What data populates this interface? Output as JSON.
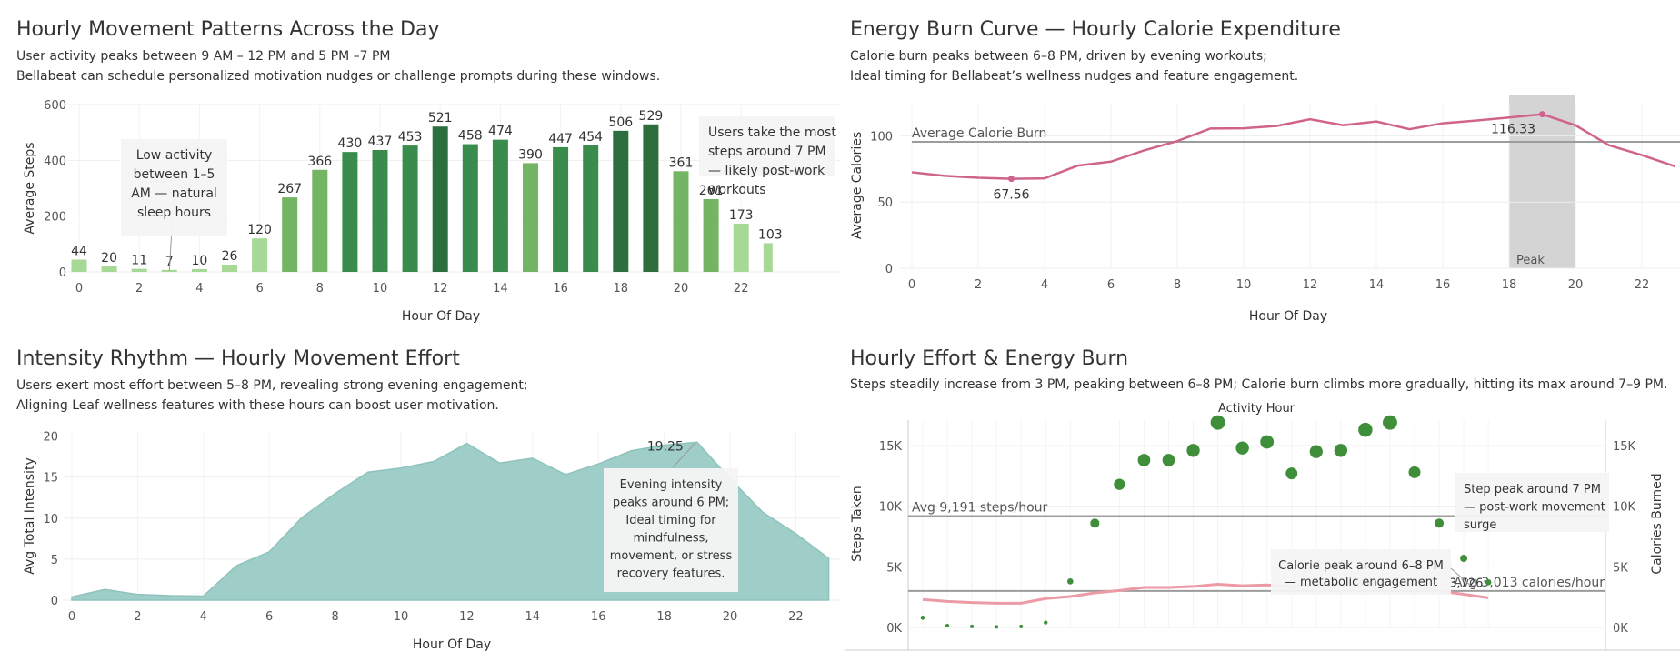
{
  "panels": {
    "steps": {
      "title": "Hourly Movement Patterns Across the Day",
      "subtitle_1": "User activity peaks between 9 AM – 12 PM and 5 PM –7 PM",
      "subtitle_2": "Bellabeat can schedule personalized motivation nudges or challenge prompts during these windows."
    },
    "calories": {
      "title": "Energy Burn Curve — Hourly Calorie Expenditure",
      "subtitle_1": "Calorie burn peaks between 6–8 PM, driven by evening workouts;",
      "subtitle_2": "Ideal timing for Bellabeat’s wellness nudges and feature engagement."
    },
    "intensity": {
      "title": "Intensity Rhythm — Hourly Movement Effort",
      "subtitle_1": "Users exert most effort between 5–8 PM, revealing strong evening engagement;",
      "subtitle_2": "Aligning Leaf wellness features with these hours can boost user motivation."
    },
    "combined": {
      "title": "Hourly Effort & Energy Burn",
      "subtitle_1": "Steps steadily increase from 3 PM, peaking between 6–8 PM; Calorie burn climbs more gradually, hitting its max around 7–9 PM."
    }
  },
  "chart_data": [
    {
      "type": "bar",
      "x": [
        0,
        1,
        2,
        3,
        4,
        5,
        6,
        7,
        8,
        9,
        10,
        11,
        12,
        13,
        14,
        15,
        16,
        17,
        18,
        19,
        20,
        21,
        22,
        23
      ],
      "values": [
        44,
        20,
        11,
        7,
        10,
        26,
        120,
        267,
        366,
        430,
        437,
        453,
        521,
        458,
        474,
        390,
        447,
        454,
        506,
        529,
        361,
        261,
        173,
        103
      ],
      "xlabel": "Hour Of Day",
      "ylabel": "Average Steps",
      "ylim": [
        0,
        600
      ],
      "yticks": [
        0,
        200,
        400,
        600
      ],
      "xticks": [
        0,
        2,
        4,
        6,
        8,
        10,
        12,
        14,
        16,
        18,
        20,
        22
      ],
      "colors": {
        "low": "#a6d896",
        "mid": "#74b564",
        "high": "#3a8c4c",
        "peak": "#2d6e3e"
      },
      "annotations": [
        {
          "text_lines": [
            "Low activity",
            "between 1–5",
            "AM — natural",
            "sleep hours"
          ],
          "x": 3
        },
        {
          "text_lines": [
            "Users take the most",
            "steps around 7 PM",
            "— likely post-work",
            "workouts"
          ],
          "x": 19
        }
      ],
      "grid": true
    },
    {
      "type": "line",
      "x": [
        0,
        1,
        2,
        3,
        4,
        5,
        6,
        7,
        8,
        9,
        10,
        11,
        12,
        13,
        14,
        15,
        16,
        17,
        18,
        19,
        20,
        21,
        22,
        23
      ],
      "values": [
        72.5,
        69.8,
        68.3,
        67.56,
        67.9,
        77.5,
        80.5,
        89,
        96,
        105.5,
        105.7,
        107.5,
        112.5,
        108,
        110.8,
        105,
        109.5,
        111.5,
        113.8,
        116.33,
        108,
        93,
        85.5,
        77
      ],
      "xlabel": "Hour Of Day",
      "ylabel": "Average Calories",
      "ylim": [
        0,
        125
      ],
      "yticks": [
        0,
        50,
        100
      ],
      "xticks": [
        0,
        2,
        4,
        6,
        8,
        10,
        12,
        14,
        16,
        18,
        20,
        22
      ],
      "reference_line": {
        "label": "Average Calorie Burn",
        "value": 95.5
      },
      "band": {
        "label": "Peak",
        "from": 18,
        "to": 20
      },
      "labels": [
        {
          "x": 3,
          "text": "67.56"
        },
        {
          "x": 19,
          "text": "116.33"
        }
      ],
      "color": "#d0638c",
      "grid": true
    },
    {
      "type": "area",
      "x": [
        0,
        1,
        2,
        3,
        4,
        5,
        6,
        7,
        8,
        9,
        10,
        11,
        12,
        13,
        14,
        15,
        16,
        17,
        18,
        19,
        20,
        21,
        22,
        23
      ],
      "values": [
        0.4,
        1.3,
        0.7,
        0.55,
        0.5,
        4.2,
        5.9,
        10.1,
        13,
        15.6,
        16.1,
        16.9,
        19.1,
        16.7,
        17.3,
        15.3,
        16.6,
        18.2,
        18.9,
        19.25,
        14.8,
        10.7,
        8.1,
        5.1
      ],
      "xlabel": "Hour Of Day",
      "ylabel": "Avg Total Intensity",
      "ylim": [
        0,
        20.5
      ],
      "yticks": [
        0,
        5,
        10,
        15,
        20
      ],
      "xticks": [
        0,
        2,
        4,
        6,
        8,
        10,
        12,
        14,
        16,
        18,
        20,
        22
      ],
      "labels": [
        {
          "x": 19,
          "text": "19.25"
        }
      ],
      "annotations": [
        {
          "text_lines": [
            "Evening intensity",
            "peaks around 6 PM;",
            "Ideal timing for",
            "mindfulness,",
            "movement, or stress",
            "recovery features."
          ],
          "x": 19
        }
      ],
      "color": "#9fcec9",
      "grid": true
    },
    {
      "type": "scatter",
      "title": "Activity Hour",
      "x": [
        0,
        1,
        2,
        3,
        4,
        5,
        6,
        7,
        8,
        9,
        10,
        11,
        12,
        13,
        14,
        15,
        16,
        17,
        18,
        19,
        20,
        21,
        22,
        23
      ],
      "steps": [
        800,
        150,
        80,
        50,
        80,
        400,
        3800,
        8600,
        11800,
        13800,
        13800,
        14600,
        16900,
        14800,
        15300,
        12700,
        14500,
        14600,
        16300,
        16900,
        12800,
        8600,
        5700,
        3726
      ],
      "calories": [
        2300,
        2150,
        2050,
        2000,
        2000,
        2380,
        2550,
        2850,
        3050,
        3300,
        3300,
        3380,
        3560,
        3440,
        3510,
        3360,
        3460,
        3520,
        3610,
        3700,
        3460,
        3000,
        2740,
        2450
      ],
      "ylabel_left": "Steps Taken",
      "ylabel_right": "Calories Burned",
      "ylim": [
        0,
        18000
      ],
      "yticks": [
        0,
        5000,
        10000,
        15000
      ],
      "ytick_labels": [
        "0K",
        "5K",
        "10K",
        "15K"
      ],
      "reference_lines": [
        {
          "label": "Avg 9,191 steps/hour",
          "value": 9191
        },
        {
          "label": "Avg 3,013 calories/hour",
          "value": 3013
        }
      ],
      "labels": [
        {
          "x": 23,
          "text": "3,726"
        }
      ],
      "annotations": [
        {
          "text_lines": [
            "Step peak around 7 PM",
            "— post-work movement",
            "surge"
          ],
          "x": 19
        },
        {
          "text_lines": [
            "Calorie peak around 6–8 PM",
            "— metabolic engagement"
          ],
          "x": 18
        }
      ],
      "colors": {
        "steps": "#3f8f3a",
        "calories": "#ec9aa6"
      },
      "grid": true
    }
  ]
}
